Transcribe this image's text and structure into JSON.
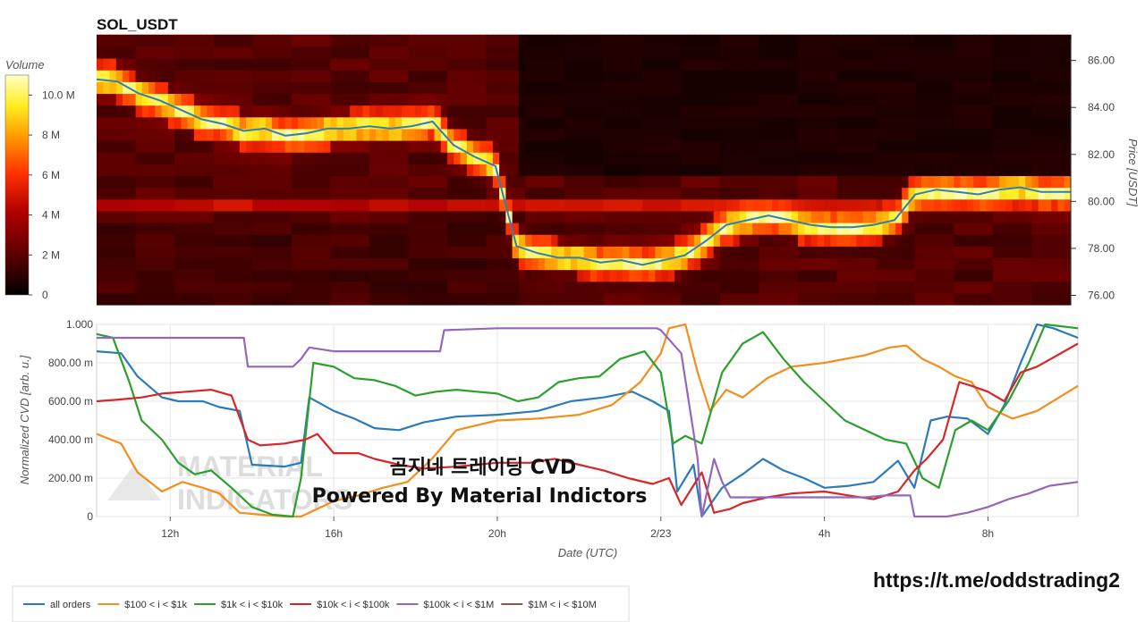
{
  "chart_data": [
    {
      "type": "heatmap",
      "title": "SOL_USDT",
      "colorbar_label": "Volume",
      "colorbar_ticks": [
        "0",
        "2 M",
        "4 M",
        "6 M",
        "8 M",
        "10.0 M"
      ],
      "colorbar_range": [
        0,
        11
      ],
      "ylabel": "Price [USDT]",
      "yticks": [
        "76.00",
        "78.00",
        "80.00",
        "82.00",
        "84.00",
        "86.00"
      ],
      "ylim": [
        75.6,
        86.9
      ],
      "price_series": {
        "name": "price",
        "color": "#2f7fb5",
        "x": [
          0,
          0.5,
          1.0,
          1.5,
          2.0,
          2.5,
          3.0,
          3.5,
          4.0,
          4.5,
          5.0,
          5.5,
          6.0,
          6.5,
          7.0,
          7.5,
          8.0,
          8.5,
          9.0,
          9.5,
          10.0,
          10.5,
          11.0,
          11.5,
          12.0,
          12.5,
          13.0,
          13.5,
          14.0,
          14.5,
          15.0,
          15.5,
          16.0,
          16.5,
          17.0,
          17.5,
          18.0,
          18.5,
          19.0,
          19.5,
          20.0,
          20.5,
          21.0,
          21.5,
          22.0,
          22.5,
          23.0,
          23.2
        ],
        "y": [
          85.2,
          85.1,
          84.6,
          84.3,
          83.9,
          83.5,
          83.3,
          83.0,
          83.1,
          82.8,
          82.9,
          83.1,
          83.1,
          83.2,
          83.1,
          83.2,
          83.4,
          82.4,
          81.9,
          81.5,
          78.1,
          77.8,
          77.6,
          77.6,
          77.4,
          77.5,
          77.3,
          77.5,
          77.7,
          78.3,
          79.0,
          79.2,
          79.4,
          79.2,
          79.0,
          78.9,
          78.9,
          79.0,
          79.2,
          80.3,
          80.5,
          80.4,
          80.3,
          80.5,
          80.6,
          80.4,
          80.4,
          80.4
        ]
      }
    },
    {
      "type": "line",
      "xlabel": "Date (UTC)",
      "ylabel": "Normalized CVD [arb. u.]",
      "xticks": [
        "12h",
        "16h",
        "20h",
        "2/23",
        "4h",
        "8h"
      ],
      "yticks": [
        "0",
        "200.00 m",
        "400.00 m",
        "600.00 m",
        "800.00 m",
        "1.000"
      ],
      "ylim": [
        0,
        1
      ],
      "xlim_hours": [
        10.2,
        34.2
      ],
      "xtick_hours": [
        12,
        16,
        20,
        24,
        28,
        32
      ],
      "series": [
        {
          "name": "all orders",
          "color": "#2b7bba",
          "x": [
            10.2,
            10.8,
            11.2,
            11.8,
            12.2,
            12.8,
            13.2,
            13.7,
            14.0,
            14.8,
            15.2,
            15.4,
            16.0,
            16.5,
            17.0,
            17.6,
            18.2,
            19.0,
            20.0,
            21.0,
            21.8,
            22.6,
            23.3,
            23.8,
            24.2,
            24.4,
            24.8,
            25.0,
            25.5,
            26.0,
            26.5,
            27.0,
            27.5,
            28.0,
            28.6,
            29.2,
            29.8,
            30.2,
            30.6,
            31.0,
            31.5,
            32.0,
            32.4,
            32.8,
            33.2,
            33.6,
            34.2
          ],
          "y": [
            0.86,
            0.85,
            0.73,
            0.62,
            0.6,
            0.6,
            0.57,
            0.55,
            0.27,
            0.26,
            0.28,
            0.62,
            0.55,
            0.51,
            0.46,
            0.45,
            0.49,
            0.52,
            0.53,
            0.55,
            0.6,
            0.62,
            0.65,
            0.6,
            0.55,
            0.13,
            0.27,
            0.0,
            0.15,
            0.22,
            0.3,
            0.24,
            0.2,
            0.15,
            0.16,
            0.18,
            0.29,
            0.15,
            0.5,
            0.52,
            0.51,
            0.43,
            0.58,
            0.8,
            1.0,
            0.98,
            0.93
          ]
        },
        {
          "name": "$100 < i < $1k",
          "color": "#f28e1c",
          "x": [
            10.2,
            10.8,
            11.2,
            11.8,
            12.3,
            12.8,
            13.2,
            13.7,
            14.2,
            14.8,
            15.2,
            15.5,
            16.0,
            16.6,
            17.2,
            17.8,
            18.4,
            19.0,
            20.0,
            21.0,
            22.0,
            22.8,
            23.5,
            24.0,
            24.2,
            24.6,
            24.9,
            25.2,
            25.6,
            26.0,
            26.6,
            27.2,
            28.0,
            29.0,
            29.6,
            30.0,
            30.4,
            30.8,
            31.2,
            31.6,
            32.0,
            32.6,
            33.2,
            34.2
          ],
          "y": [
            0.43,
            0.38,
            0.23,
            0.13,
            0.18,
            0.15,
            0.12,
            0.02,
            0.01,
            0.0,
            0.0,
            0.03,
            0.08,
            0.11,
            0.15,
            0.18,
            0.3,
            0.45,
            0.5,
            0.51,
            0.53,
            0.58,
            0.7,
            0.85,
            0.98,
            1.0,
            0.75,
            0.55,
            0.66,
            0.62,
            0.72,
            0.78,
            0.8,
            0.84,
            0.88,
            0.89,
            0.82,
            0.78,
            0.73,
            0.7,
            0.57,
            0.51,
            0.55,
            0.68
          ]
        },
        {
          "name": "$1k < i < $10k",
          "color": "#2ca02c",
          "x": [
            10.2,
            10.6,
            11.0,
            11.3,
            11.8,
            12.2,
            12.6,
            13.0,
            13.5,
            14.0,
            14.5,
            15.0,
            15.2,
            15.5,
            16.0,
            16.5,
            17.0,
            17.5,
            18.0,
            18.5,
            19.0,
            19.5,
            20.0,
            20.5,
            21.0,
            21.5,
            22.0,
            22.5,
            23.0,
            23.6,
            24.0,
            24.3,
            24.6,
            25.0,
            25.5,
            26.0,
            26.5,
            27.0,
            27.5,
            28.0,
            28.5,
            29.0,
            29.5,
            30.0,
            30.4,
            30.8,
            31.2,
            31.6,
            32.0,
            32.5,
            33.0,
            33.4,
            34.2
          ],
          "y": [
            0.95,
            0.93,
            0.7,
            0.5,
            0.4,
            0.28,
            0.22,
            0.24,
            0.15,
            0.05,
            0.01,
            0.0,
            0.2,
            0.8,
            0.78,
            0.72,
            0.71,
            0.68,
            0.63,
            0.65,
            0.66,
            0.65,
            0.64,
            0.6,
            0.62,
            0.7,
            0.72,
            0.73,
            0.82,
            0.86,
            0.75,
            0.38,
            0.42,
            0.38,
            0.75,
            0.9,
            0.96,
            0.82,
            0.7,
            0.6,
            0.5,
            0.45,
            0.4,
            0.38,
            0.2,
            0.15,
            0.45,
            0.5,
            0.45,
            0.6,
            0.8,
            1.0,
            0.98
          ]
        },
        {
          "name": "$10k < i < $100k",
          "color": "#d62728",
          "x": [
            10.2,
            10.8,
            11.3,
            11.8,
            12.4,
            13.0,
            13.5,
            13.9,
            14.2,
            14.8,
            15.3,
            15.6,
            16.0,
            16.6,
            17.0,
            17.6,
            18.2,
            19.0,
            20.0,
            20.8,
            21.4,
            22.0,
            22.6,
            23.2,
            23.8,
            24.2,
            24.5,
            25.0,
            25.3,
            25.7,
            26.0,
            26.6,
            27.2,
            28.0,
            28.6,
            29.2,
            29.8,
            30.2,
            30.5,
            30.9,
            31.3,
            31.6,
            32.0,
            32.4,
            32.8,
            33.2,
            34.2
          ],
          "y": [
            0.6,
            0.61,
            0.62,
            0.64,
            0.65,
            0.66,
            0.63,
            0.4,
            0.37,
            0.38,
            0.4,
            0.43,
            0.33,
            0.33,
            0.3,
            0.27,
            0.25,
            0.26,
            0.28,
            0.28,
            0.3,
            0.27,
            0.24,
            0.2,
            0.17,
            0.2,
            0.06,
            0.23,
            0.02,
            0.04,
            0.07,
            0.1,
            0.12,
            0.13,
            0.11,
            0.09,
            0.13,
            0.24,
            0.3,
            0.4,
            0.7,
            0.68,
            0.65,
            0.6,
            0.75,
            0.78,
            0.9
          ]
        },
        {
          "name": "$100k < i < $1M",
          "color": "#9467bd",
          "x": [
            10.2,
            11.0,
            12.0,
            13.0,
            13.8,
            13.9,
            14.8,
            15.0,
            15.2,
            15.4,
            16.0,
            17.0,
            18.0,
            18.6,
            18.7,
            20.0,
            21.0,
            22.0,
            23.0,
            23.9,
            24.0,
            24.5,
            24.9,
            25.0,
            25.3,
            25.5,
            25.7,
            26.0,
            27.0,
            28.0,
            29.0,
            29.5,
            30.1,
            30.2,
            31.0,
            31.5,
            32.0,
            32.5,
            33.0,
            33.5,
            34.2
          ],
          "y": [
            0.93,
            0.93,
            0.93,
            0.93,
            0.93,
            0.78,
            0.78,
            0.78,
            0.82,
            0.88,
            0.86,
            0.86,
            0.86,
            0.86,
            0.97,
            0.98,
            0.98,
            0.98,
            0.98,
            0.98,
            0.97,
            0.85,
            0.3,
            0.0,
            0.3,
            0.18,
            0.1,
            0.1,
            0.1,
            0.1,
            0.1,
            0.11,
            0.11,
            0.0,
            0.0,
            0.02,
            0.05,
            0.09,
            0.12,
            0.16,
            0.18
          ]
        },
        {
          "name": "$1M < i < $10M",
          "color": "#8c564b",
          "x": [],
          "y": []
        }
      ]
    }
  ],
  "watermark": {
    "line1": "MATERIAL",
    "line2": "INDICATORS"
  },
  "overlay": {
    "line1": "곰지네 트레이딩 CVD",
    "line2": "Powered By Material Indictors"
  },
  "link": "https://t.me/oddstrading2"
}
